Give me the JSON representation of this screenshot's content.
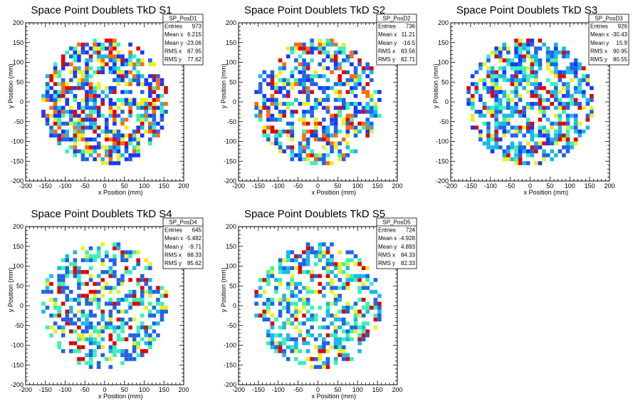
{
  "chart_data": [
    {
      "type": "heatmap",
      "title": "Space Point Doublets TkD S1",
      "xlabel": "x Position (mm)",
      "ylabel": "y Position (mm)",
      "xlim": [
        -200,
        200
      ],
      "ylim": [
        -200,
        200
      ],
      "xticks": [
        -200,
        -150,
        -100,
        -50,
        0,
        50,
        100,
        150,
        200
      ],
      "yticks": [
        -200,
        -150,
        -100,
        -50,
        0,
        50,
        100,
        150,
        200
      ],
      "stats": {
        "name": "SP_PosD1",
        "rows": [
          [
            "Entries",
            "973"
          ],
          [
            "Mean x",
            "6.215"
          ],
          [
            "Mean y",
            "-23.06"
          ],
          [
            "RMS x",
            "87.95"
          ],
          [
            "RMS y",
            "77.62"
          ]
        ]
      },
      "fill_radius": 160,
      "density": 0.62,
      "palette": [
        "#1437ff",
        "#1437ff",
        "#1f63e6",
        "#18b9e8",
        "#37f2b2",
        "#e9ef22",
        "#ff6a00",
        "#e10000"
      ]
    },
    {
      "type": "heatmap",
      "title": "Space Point Doublets TkD S2",
      "xlabel": "x Position (mm)",
      "ylabel": "y Position (mm)",
      "xlim": [
        -200,
        200
      ],
      "ylim": [
        -200,
        200
      ],
      "xticks": [
        -200,
        -150,
        -100,
        -50,
        0,
        50,
        100,
        150,
        200
      ],
      "yticks": [
        -200,
        -150,
        -100,
        -50,
        0,
        50,
        100,
        150,
        200
      ],
      "stats": {
        "name": "SP_PosD2",
        "rows": [
          [
            "Entries",
            "736"
          ],
          [
            "Mean x",
            "11.21"
          ],
          [
            "Mean y",
            "-16.5"
          ],
          [
            "RMS x",
            "83.56"
          ],
          [
            "RMS y",
            "82.71"
          ]
        ]
      },
      "fill_radius": 160,
      "density": 0.52,
      "palette": [
        "#1437ff",
        "#1f63e6",
        "#1f63e6",
        "#18b9e8",
        "#37f2b2",
        "#e9ef22",
        "#ff6a00",
        "#e10000"
      ]
    },
    {
      "type": "heatmap",
      "title": "Space Point Doublets TkD S3",
      "xlabel": "x Position (mm)",
      "ylabel": "y Position (mm)",
      "xlim": [
        -200,
        200
      ],
      "ylim": [
        -200,
        200
      ],
      "xticks": [
        -200,
        -150,
        -100,
        -50,
        0,
        50,
        100,
        150,
        200
      ],
      "yticks": [
        -200,
        -150,
        -100,
        -50,
        0,
        50,
        100,
        150,
        200
      ],
      "stats": {
        "name": "SP_PosD3",
        "rows": [
          [
            "Entries",
            "926"
          ],
          [
            "Mean x",
            "-30.43"
          ],
          [
            "Mean y",
            "15.9"
          ],
          [
            "RMS x",
            "90.95"
          ],
          [
            "RMS y",
            "80.55"
          ]
        ]
      },
      "fill_radius": 160,
      "density": 0.58,
      "palette": [
        "#1437ff",
        "#1f63e6",
        "#1f63e6",
        "#18b9e8",
        "#18b9e8",
        "#37f2b2",
        "#e9ef22",
        "#e10000"
      ]
    },
    {
      "type": "heatmap",
      "title": "Space Point Doublets TkD S4",
      "xlabel": "x Position (mm)",
      "ylabel": "y Position (mm)",
      "xlim": [
        -200,
        200
      ],
      "ylim": [
        -200,
        200
      ],
      "xticks": [
        -200,
        -150,
        -100,
        -50,
        0,
        50,
        100,
        150,
        200
      ],
      "yticks": [
        -200,
        -150,
        -100,
        -50,
        0,
        50,
        100,
        150,
        200
      ],
      "stats": {
        "name": "SP_PosD4",
        "rows": [
          [
            "Entries",
            "645"
          ],
          [
            "Mean x",
            "-5.482"
          ],
          [
            "Mean y",
            "-9.71"
          ],
          [
            "RMS x",
            "88.33"
          ],
          [
            "RMS y",
            "85.62"
          ]
        ]
      },
      "fill_radius": 160,
      "density": 0.48,
      "palette": [
        "#1f63e6",
        "#1f63e6",
        "#1f63e6",
        "#18b9e8",
        "#37f2b2",
        "#37f2b2",
        "#e9ef22",
        "#e10000"
      ]
    },
    {
      "type": "heatmap",
      "title": "Space Point Doublets TkD S5",
      "xlabel": "x Position (mm)",
      "ylabel": "y Position (mm)",
      "xlim": [
        -200,
        200
      ],
      "ylim": [
        -200,
        200
      ],
      "xticks": [
        -200,
        -150,
        -100,
        -50,
        0,
        50,
        100,
        150,
        200
      ],
      "yticks": [
        -200,
        -150,
        -100,
        -50,
        0,
        50,
        100,
        150,
        200
      ],
      "stats": {
        "name": "SP_PosD5",
        "rows": [
          [
            "Entries",
            "724"
          ],
          [
            "Mean x",
            "-4.928"
          ],
          [
            "Mean y",
            "4.893"
          ],
          [
            "RMS x",
            "84.33"
          ],
          [
            "RMS y",
            "82.33"
          ]
        ]
      },
      "fill_radius": 160,
      "density": 0.52,
      "palette": [
        "#1f63e6",
        "#1f63e6",
        "#18b9e8",
        "#18b9e8",
        "#37f2b2",
        "#37f2b2",
        "#e9ef22",
        "#e10000"
      ]
    }
  ]
}
